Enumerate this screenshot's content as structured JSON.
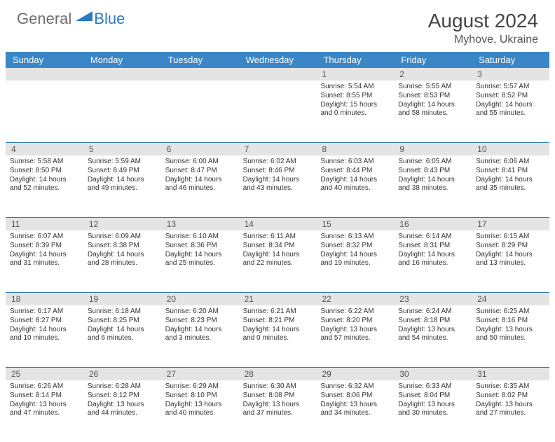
{
  "logo": {
    "general": "General",
    "blue": "Blue"
  },
  "title": {
    "month": "August 2024",
    "location": "Myhove, Ukraine"
  },
  "colors": {
    "header_bg": "#3b86c6",
    "daynum_bg": "#e4e4e4",
    "divider": "#2b7bbd",
    "logo_gray": "#6d6d6d",
    "logo_blue": "#2b7bbd"
  },
  "weekdays": [
    "Sunday",
    "Monday",
    "Tuesday",
    "Wednesday",
    "Thursday",
    "Friday",
    "Saturday"
  ],
  "weeks": [
    {
      "nums": [
        "",
        "",
        "",
        "",
        "1",
        "2",
        "3"
      ],
      "days": [
        null,
        null,
        null,
        null,
        {
          "sunrise": "Sunrise: 5:54 AM",
          "sunset": "Sunset: 8:55 PM",
          "daylight": "Daylight: 15 hours and 0 minutes."
        },
        {
          "sunrise": "Sunrise: 5:55 AM",
          "sunset": "Sunset: 8:53 PM",
          "daylight": "Daylight: 14 hours and 58 minutes."
        },
        {
          "sunrise": "Sunrise: 5:57 AM",
          "sunset": "Sunset: 8:52 PM",
          "daylight": "Daylight: 14 hours and 55 minutes."
        }
      ]
    },
    {
      "nums": [
        "4",
        "5",
        "6",
        "7",
        "8",
        "9",
        "10"
      ],
      "days": [
        {
          "sunrise": "Sunrise: 5:58 AM",
          "sunset": "Sunset: 8:50 PM",
          "daylight": "Daylight: 14 hours and 52 minutes."
        },
        {
          "sunrise": "Sunrise: 5:59 AM",
          "sunset": "Sunset: 8:49 PM",
          "daylight": "Daylight: 14 hours and 49 minutes."
        },
        {
          "sunrise": "Sunrise: 6:00 AM",
          "sunset": "Sunset: 8:47 PM",
          "daylight": "Daylight: 14 hours and 46 minutes."
        },
        {
          "sunrise": "Sunrise: 6:02 AM",
          "sunset": "Sunset: 8:46 PM",
          "daylight": "Daylight: 14 hours and 43 minutes."
        },
        {
          "sunrise": "Sunrise: 6:03 AM",
          "sunset": "Sunset: 8:44 PM",
          "daylight": "Daylight: 14 hours and 40 minutes."
        },
        {
          "sunrise": "Sunrise: 6:05 AM",
          "sunset": "Sunset: 8:43 PM",
          "daylight": "Daylight: 14 hours and 38 minutes."
        },
        {
          "sunrise": "Sunrise: 6:06 AM",
          "sunset": "Sunset: 8:41 PM",
          "daylight": "Daylight: 14 hours and 35 minutes."
        }
      ]
    },
    {
      "nums": [
        "11",
        "12",
        "13",
        "14",
        "15",
        "16",
        "17"
      ],
      "days": [
        {
          "sunrise": "Sunrise: 6:07 AM",
          "sunset": "Sunset: 8:39 PM",
          "daylight": "Daylight: 14 hours and 31 minutes."
        },
        {
          "sunrise": "Sunrise: 6:09 AM",
          "sunset": "Sunset: 8:38 PM",
          "daylight": "Daylight: 14 hours and 28 minutes."
        },
        {
          "sunrise": "Sunrise: 6:10 AM",
          "sunset": "Sunset: 8:36 PM",
          "daylight": "Daylight: 14 hours and 25 minutes."
        },
        {
          "sunrise": "Sunrise: 6:11 AM",
          "sunset": "Sunset: 8:34 PM",
          "daylight": "Daylight: 14 hours and 22 minutes."
        },
        {
          "sunrise": "Sunrise: 6:13 AM",
          "sunset": "Sunset: 8:32 PM",
          "daylight": "Daylight: 14 hours and 19 minutes."
        },
        {
          "sunrise": "Sunrise: 6:14 AM",
          "sunset": "Sunset: 8:31 PM",
          "daylight": "Daylight: 14 hours and 16 minutes."
        },
        {
          "sunrise": "Sunrise: 6:15 AM",
          "sunset": "Sunset: 8:29 PM",
          "daylight": "Daylight: 14 hours and 13 minutes."
        }
      ]
    },
    {
      "nums": [
        "18",
        "19",
        "20",
        "21",
        "22",
        "23",
        "24"
      ],
      "days": [
        {
          "sunrise": "Sunrise: 6:17 AM",
          "sunset": "Sunset: 8:27 PM",
          "daylight": "Daylight: 14 hours and 10 minutes."
        },
        {
          "sunrise": "Sunrise: 6:18 AM",
          "sunset": "Sunset: 8:25 PM",
          "daylight": "Daylight: 14 hours and 6 minutes."
        },
        {
          "sunrise": "Sunrise: 6:20 AM",
          "sunset": "Sunset: 8:23 PM",
          "daylight": "Daylight: 14 hours and 3 minutes."
        },
        {
          "sunrise": "Sunrise: 6:21 AM",
          "sunset": "Sunset: 8:21 PM",
          "daylight": "Daylight: 14 hours and 0 minutes."
        },
        {
          "sunrise": "Sunrise: 6:22 AM",
          "sunset": "Sunset: 8:20 PM",
          "daylight": "Daylight: 13 hours and 57 minutes."
        },
        {
          "sunrise": "Sunrise: 6:24 AM",
          "sunset": "Sunset: 8:18 PM",
          "daylight": "Daylight: 13 hours and 54 minutes."
        },
        {
          "sunrise": "Sunrise: 6:25 AM",
          "sunset": "Sunset: 8:16 PM",
          "daylight": "Daylight: 13 hours and 50 minutes."
        }
      ]
    },
    {
      "nums": [
        "25",
        "26",
        "27",
        "28",
        "29",
        "30",
        "31"
      ],
      "days": [
        {
          "sunrise": "Sunrise: 6:26 AM",
          "sunset": "Sunset: 8:14 PM",
          "daylight": "Daylight: 13 hours and 47 minutes."
        },
        {
          "sunrise": "Sunrise: 6:28 AM",
          "sunset": "Sunset: 8:12 PM",
          "daylight": "Daylight: 13 hours and 44 minutes."
        },
        {
          "sunrise": "Sunrise: 6:29 AM",
          "sunset": "Sunset: 8:10 PM",
          "daylight": "Daylight: 13 hours and 40 minutes."
        },
        {
          "sunrise": "Sunrise: 6:30 AM",
          "sunset": "Sunset: 8:08 PM",
          "daylight": "Daylight: 13 hours and 37 minutes."
        },
        {
          "sunrise": "Sunrise: 6:32 AM",
          "sunset": "Sunset: 8:06 PM",
          "daylight": "Daylight: 13 hours and 34 minutes."
        },
        {
          "sunrise": "Sunrise: 6:33 AM",
          "sunset": "Sunset: 8:04 PM",
          "daylight": "Daylight: 13 hours and 30 minutes."
        },
        {
          "sunrise": "Sunrise: 6:35 AM",
          "sunset": "Sunset: 8:02 PM",
          "daylight": "Daylight: 13 hours and 27 minutes."
        }
      ]
    }
  ]
}
